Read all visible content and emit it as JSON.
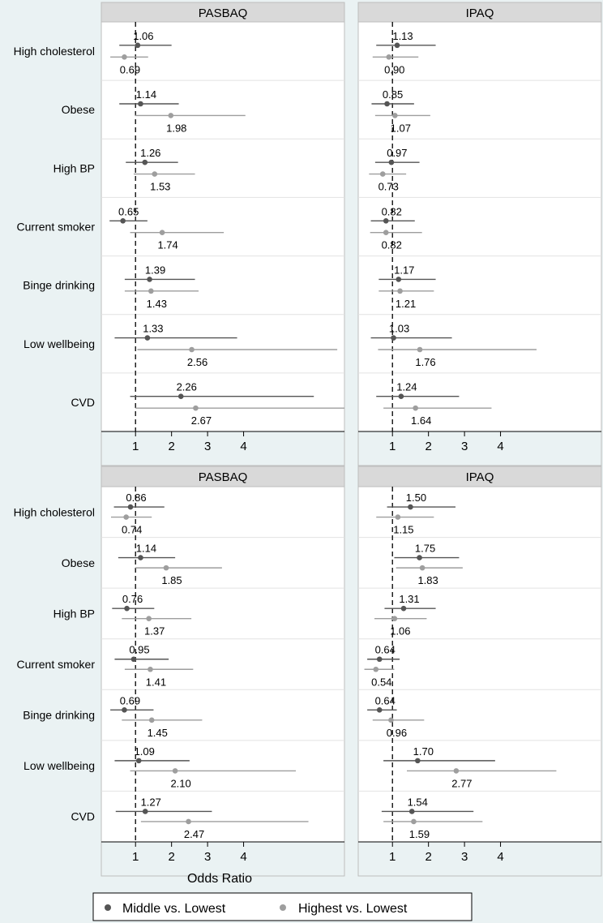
{
  "figure": {
    "xlabel": "Odds Ratio",
    "legend": {
      "placement": "bottom-center",
      "entries": [
        {
          "label": "Middle vs. Lowest",
          "color": "#555555"
        },
        {
          "label": "Highest vs. Lowest",
          "color": "#9e9e9e"
        }
      ]
    },
    "colors": {
      "middle": "#555555",
      "highest": "#9e9e9e",
      "strip": "#d9d9d9",
      "background": "#eaf2f3",
      "panel": "#ffffff"
    }
  },
  "chart_data": [
    {
      "type": "forest",
      "panel": "top-left",
      "title": "PASBAQ",
      "reference_line": 1,
      "xticks": [
        1,
        2,
        3,
        4
      ],
      "xlim": [
        0.05,
        6.8
      ],
      "categories": [
        "High cholesterol",
        "Obese",
        "High BP",
        "Current smoker",
        "Binge drinking",
        "Low wellbeing",
        "CVD"
      ],
      "series": [
        {
          "name": "Middle vs. Lowest",
          "values": [
            1.06,
            1.14,
            1.26,
            0.65,
            1.39,
            1.33,
            2.26
          ],
          "ci_low": [
            0.55,
            0.55,
            0.73,
            0.28,
            0.7,
            0.42,
            0.85
          ],
          "ci_high": [
            2.0,
            2.2,
            2.18,
            1.33,
            2.65,
            3.82,
            5.95
          ]
        },
        {
          "name": "Highest vs. Lowest",
          "values": [
            0.69,
            1.98,
            1.53,
            1.74,
            1.43,
            2.56,
            2.67
          ],
          "ci_low": [
            0.3,
            0.98,
            0.95,
            0.85,
            0.7,
            1.05,
            1.0
          ],
          "ci_high": [
            1.35,
            4.05,
            2.65,
            3.45,
            2.75,
            6.6,
            6.8
          ]
        }
      ]
    },
    {
      "type": "forest",
      "panel": "top-right",
      "title": "IPAQ",
      "reference_line": 1,
      "xticks": [
        1,
        2,
        3,
        4
      ],
      "xlim": [
        0.05,
        6.8
      ],
      "categories": [
        "High cholesterol",
        "Obese",
        "High BP",
        "Current smoker",
        "Binge drinking",
        "Low wellbeing",
        "CVD"
      ],
      "series": [
        {
          "name": "Middle vs. Lowest",
          "values": [
            1.13,
            0.85,
            0.97,
            0.82,
            1.17,
            1.03,
            1.24
          ],
          "ci_low": [
            0.55,
            0.42,
            0.52,
            0.4,
            0.62,
            0.4,
            0.55
          ],
          "ci_high": [
            2.2,
            1.6,
            1.75,
            1.62,
            2.2,
            2.65,
            2.85
          ]
        },
        {
          "name": "Highest vs. Lowest",
          "values": [
            0.9,
            1.07,
            0.73,
            0.82,
            1.21,
            1.76,
            1.64
          ],
          "ci_low": [
            0.45,
            0.52,
            0.35,
            0.38,
            0.62,
            0.6,
            0.75
          ],
          "ci_high": [
            1.72,
            2.05,
            1.38,
            1.82,
            2.15,
            5.0,
            3.75
          ]
        }
      ]
    },
    {
      "type": "forest",
      "panel": "bottom-left",
      "title": "PASBAQ",
      "reference_line": 1,
      "xticks": [
        1,
        2,
        3,
        4
      ],
      "xlim": [
        0.05,
        6.8
      ],
      "categories": [
        "High cholesterol",
        "Obese",
        "High BP",
        "Current smoker",
        "Binge drinking",
        "Low wellbeing",
        "CVD"
      ],
      "series": [
        {
          "name": "Middle vs. Lowest",
          "values": [
            0.86,
            1.14,
            0.76,
            0.95,
            0.69,
            1.09,
            1.27
          ],
          "ci_low": [
            0.4,
            0.52,
            0.35,
            0.42,
            0.3,
            0.42,
            0.45
          ],
          "ci_high": [
            1.8,
            2.1,
            1.52,
            1.92,
            1.5,
            2.5,
            3.12
          ]
        },
        {
          "name": "Highest vs. Lowest",
          "values": [
            0.74,
            1.85,
            1.37,
            1.41,
            1.45,
            2.1,
            2.47
          ],
          "ci_low": [
            0.32,
            1.0,
            0.62,
            0.7,
            0.62,
            0.85,
            1.15
          ],
          "ci_high": [
            1.45,
            3.4,
            2.55,
            2.6,
            2.85,
            5.45,
            5.8
          ]
        }
      ]
    },
    {
      "type": "forest",
      "panel": "bottom-right",
      "title": "IPAQ",
      "reference_line": 1,
      "xticks": [
        1,
        2,
        3,
        4
      ],
      "xlim": [
        0.05,
        6.8
      ],
      "categories": [
        "High cholesterol",
        "Obese",
        "High BP",
        "Current smoker",
        "Binge drinking",
        "Low wellbeing",
        "CVD"
      ],
      "series": [
        {
          "name": "Middle vs. Lowest",
          "values": [
            1.5,
            1.75,
            1.31,
            0.64,
            0.64,
            1.7,
            1.54
          ],
          "ci_low": [
            0.85,
            1.05,
            0.78,
            0.3,
            0.3,
            0.75,
            0.7
          ],
          "ci_high": [
            2.75,
            2.85,
            2.2,
            1.2,
            1.12,
            3.85,
            3.25
          ]
        },
        {
          "name": "Highest vs. Lowest",
          "values": [
            1.15,
            1.83,
            1.06,
            0.54,
            0.96,
            2.77,
            1.59
          ],
          "ci_low": [
            0.55,
            1.1,
            0.5,
            0.22,
            0.45,
            1.4,
            0.75
          ],
          "ci_high": [
            2.15,
            2.95,
            1.95,
            1.05,
            1.88,
            5.55,
            3.5
          ]
        }
      ]
    }
  ]
}
